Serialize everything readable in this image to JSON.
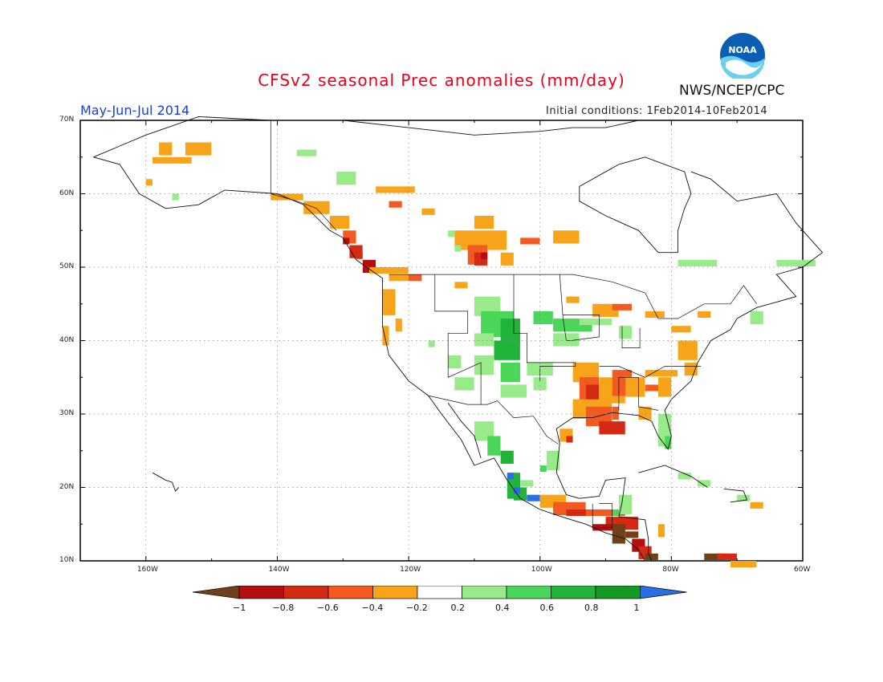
{
  "header": {
    "title": "CFSv2 seasonal Prec anomalies (mm/day)",
    "season": "May-Jun-Jul 2014",
    "initial_conditions": "Initial conditions: 1Feb2014-10Feb2014",
    "agency": "NWS/NCEP/CPC",
    "logo_text": "NOAA"
  },
  "map": {
    "lat_labels": [
      "70N",
      "60N",
      "50N",
      "40N",
      "30N",
      "20N",
      "10N"
    ],
    "lon_labels": [
      "160W",
      "140W",
      "120W",
      "100W",
      "80W",
      "60W"
    ],
    "lat_range": [
      10,
      70
    ],
    "lon_range": [
      -170,
      -60
    ]
  },
  "legend": {
    "labels": [
      "-1",
      "-0.8",
      "-0.6",
      "-0.4",
      "-0.2",
      "0.2",
      "0.4",
      "0.6",
      "0.8",
      "1"
    ],
    "colors": [
      "#704018",
      "#b40e0e",
      "#d42a14",
      "#f25a22",
      "#f7a41a",
      "#ffffff",
      "#98ea8a",
      "#4ad659",
      "#22b43a",
      "#149a22",
      "#2a6ee6"
    ]
  },
  "colors": {
    "title": "#e8001c",
    "season": "#1a3fd6"
  }
}
